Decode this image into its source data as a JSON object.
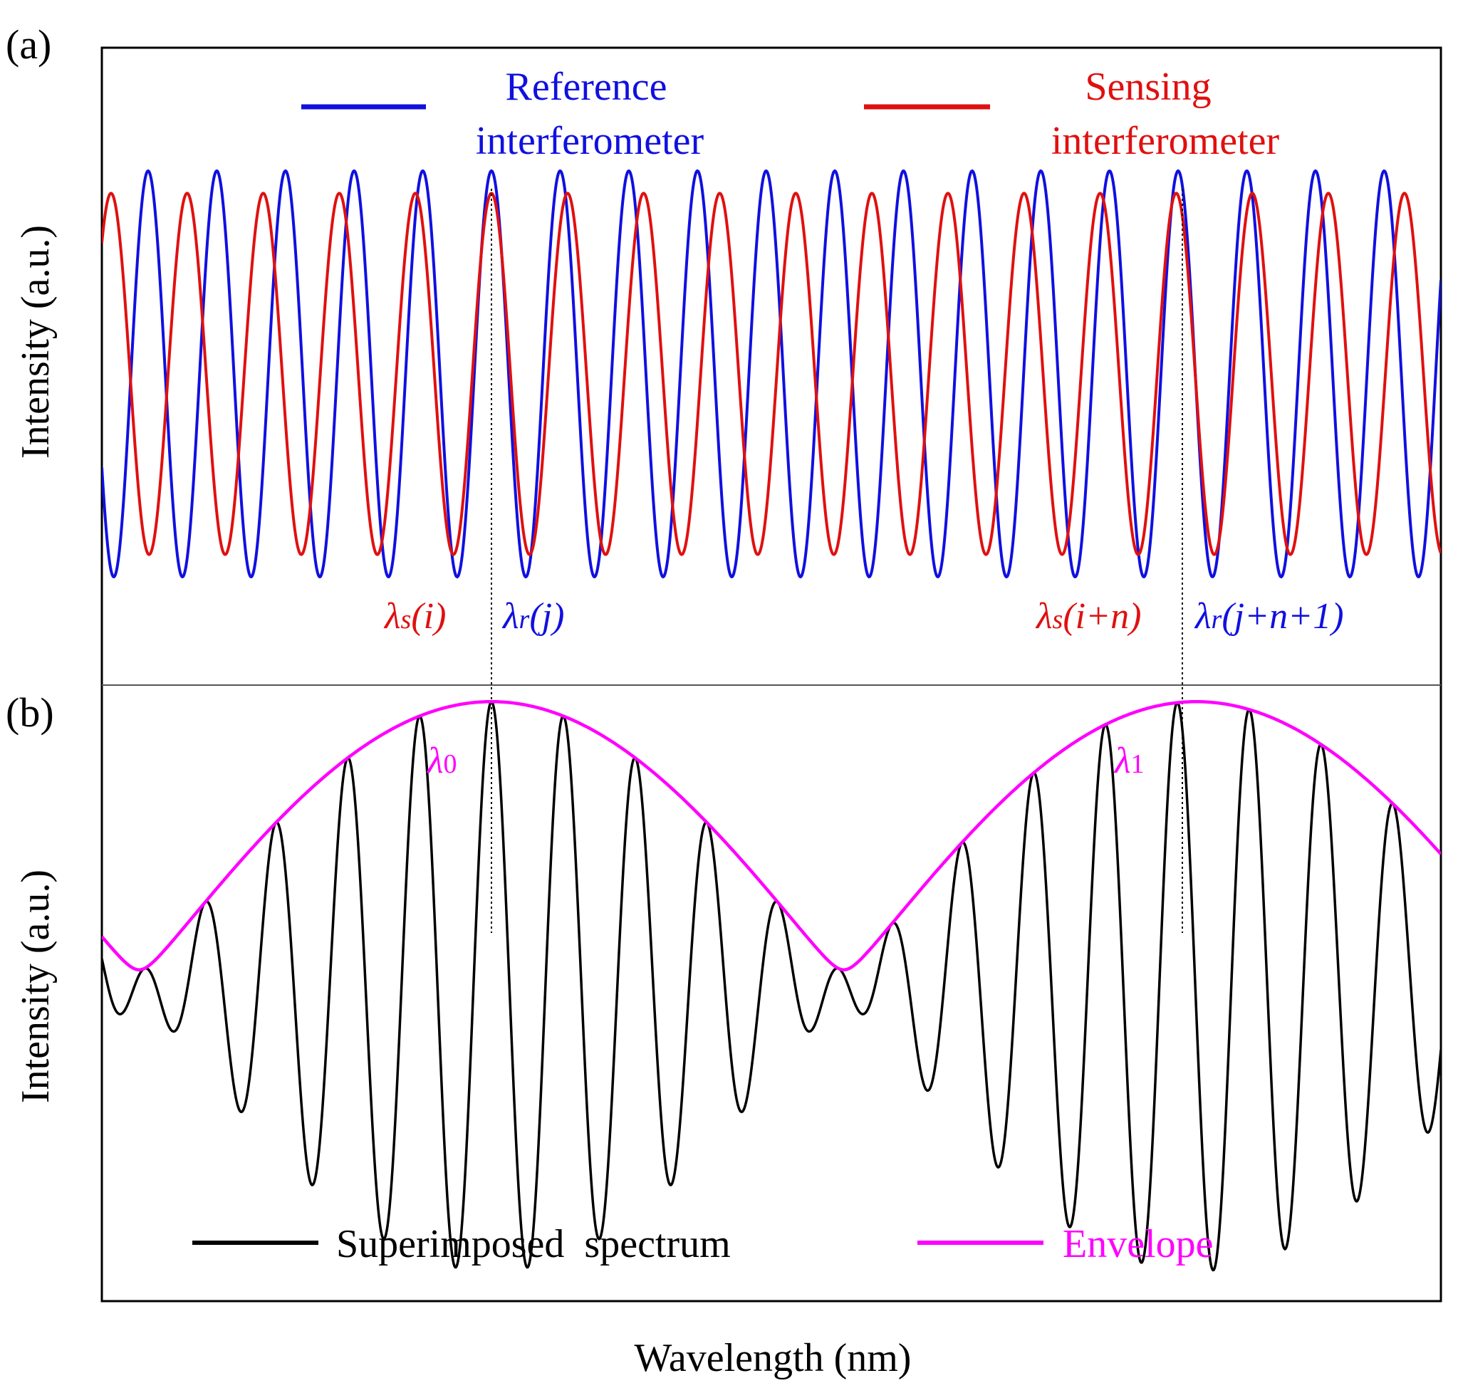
{
  "panels": {
    "a": "(a)",
    "b": "(b)"
  },
  "axes": {
    "xlabel": "Wavelength (nm)",
    "ylabel_a": "Intensity (a.u.)",
    "ylabel_b": "Intensity (a.u.)"
  },
  "colors": {
    "reference": "#1010e0",
    "sensing": "#e01010",
    "superimposed": "#000000",
    "envelope": "#ff00ff"
  },
  "chart_data": [
    {
      "type": "line",
      "panel": "(a)",
      "xlabel": "Wavelength (nm)",
      "ylabel": "Intensity (a.u.)",
      "ticks": "none",
      "legend": "top",
      "series": [
        {
          "name_lines": [
            "Reference",
            "interferometer"
          ],
          "color": "#1010e0",
          "shape": "sinusoid",
          "fringe_count": 19.5,
          "amplitude": 1.0
        },
        {
          "name_lines": [
            "Sensing",
            "interferometer"
          ],
          "color": "#e01010",
          "shape": "sinusoid",
          "fringe_count": 17.6,
          "amplitude": 0.89
        }
      ],
      "annotations": [
        {
          "main": "λ",
          "sub": "s",
          "paren": "(i)",
          "color": "#e01010"
        },
        {
          "main": "λ",
          "sub": "r",
          "paren": "(j)",
          "color": "#1010e0"
        },
        {
          "main": "λ",
          "sub": "s",
          "paren": "(i+n)",
          "color": "#e01010"
        },
        {
          "main": "λ",
          "sub": "r",
          "paren": "(j+n+1)",
          "color": "#1010e0"
        }
      ]
    },
    {
      "type": "line",
      "panel": "(b)",
      "xlabel": "Wavelength (nm)",
      "ylabel": "Intensity (a.u.)",
      "ticks": "none",
      "legend": "bottom",
      "series": [
        {
          "name": "Superimposed  spectrum",
          "color": "#000000",
          "shape": "beat of two sinusoids"
        },
        {
          "name": "Envelope",
          "color": "#ff00ff",
          "shape": "upper envelope"
        }
      ],
      "envelope_peaks": [
        {
          "label_main": "λ",
          "label_sub": "0"
        },
        {
          "label_main": "λ",
          "label_sub": "1"
        }
      ]
    }
  ]
}
